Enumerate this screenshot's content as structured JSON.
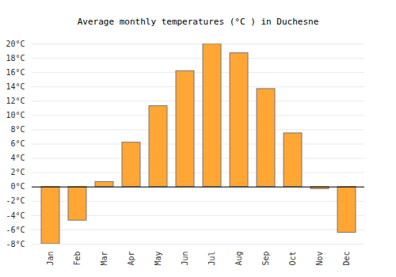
{
  "chart_data": {
    "type": "bar",
    "title": "Average monthly temperatures (°C ) in Duchesne",
    "categories": [
      "Jan",
      "Feb",
      "Mar",
      "Apr",
      "May",
      "Jun",
      "Jul",
      "Aug",
      "Sep",
      "Oct",
      "Nov",
      "Dec"
    ],
    "values": [
      -8.0,
      -4.7,
      0.7,
      6.2,
      11.3,
      16.2,
      20.0,
      18.7,
      13.7,
      7.5,
      -0.3,
      -6.4
    ],
    "color": "#ffa634",
    "ylim": [
      -8,
      20
    ],
    "yticks": [
      {
        "value": -8,
        "label": "-8°C"
      },
      {
        "value": -6,
        "label": "-6°C"
      },
      {
        "value": -4,
        "label": "-4°C"
      },
      {
        "value": -2,
        "label": "-2°C"
      },
      {
        "value": 0,
        "label": "0°C"
      },
      {
        "value": 2,
        "label": "2°C"
      },
      {
        "value": 4,
        "label": "4°C"
      },
      {
        "value": 6,
        "label": "6°C"
      },
      {
        "value": 8,
        "label": "8°C"
      },
      {
        "value": 10,
        "label": "10°C"
      },
      {
        "value": 12,
        "label": "12°C"
      },
      {
        "value": 14,
        "label": "14°C"
      },
      {
        "value": 16,
        "label": "16°C"
      },
      {
        "value": 18,
        "label": "18°C"
      },
      {
        "value": 20,
        "label": "20°C"
      }
    ],
    "grid": true
  }
}
